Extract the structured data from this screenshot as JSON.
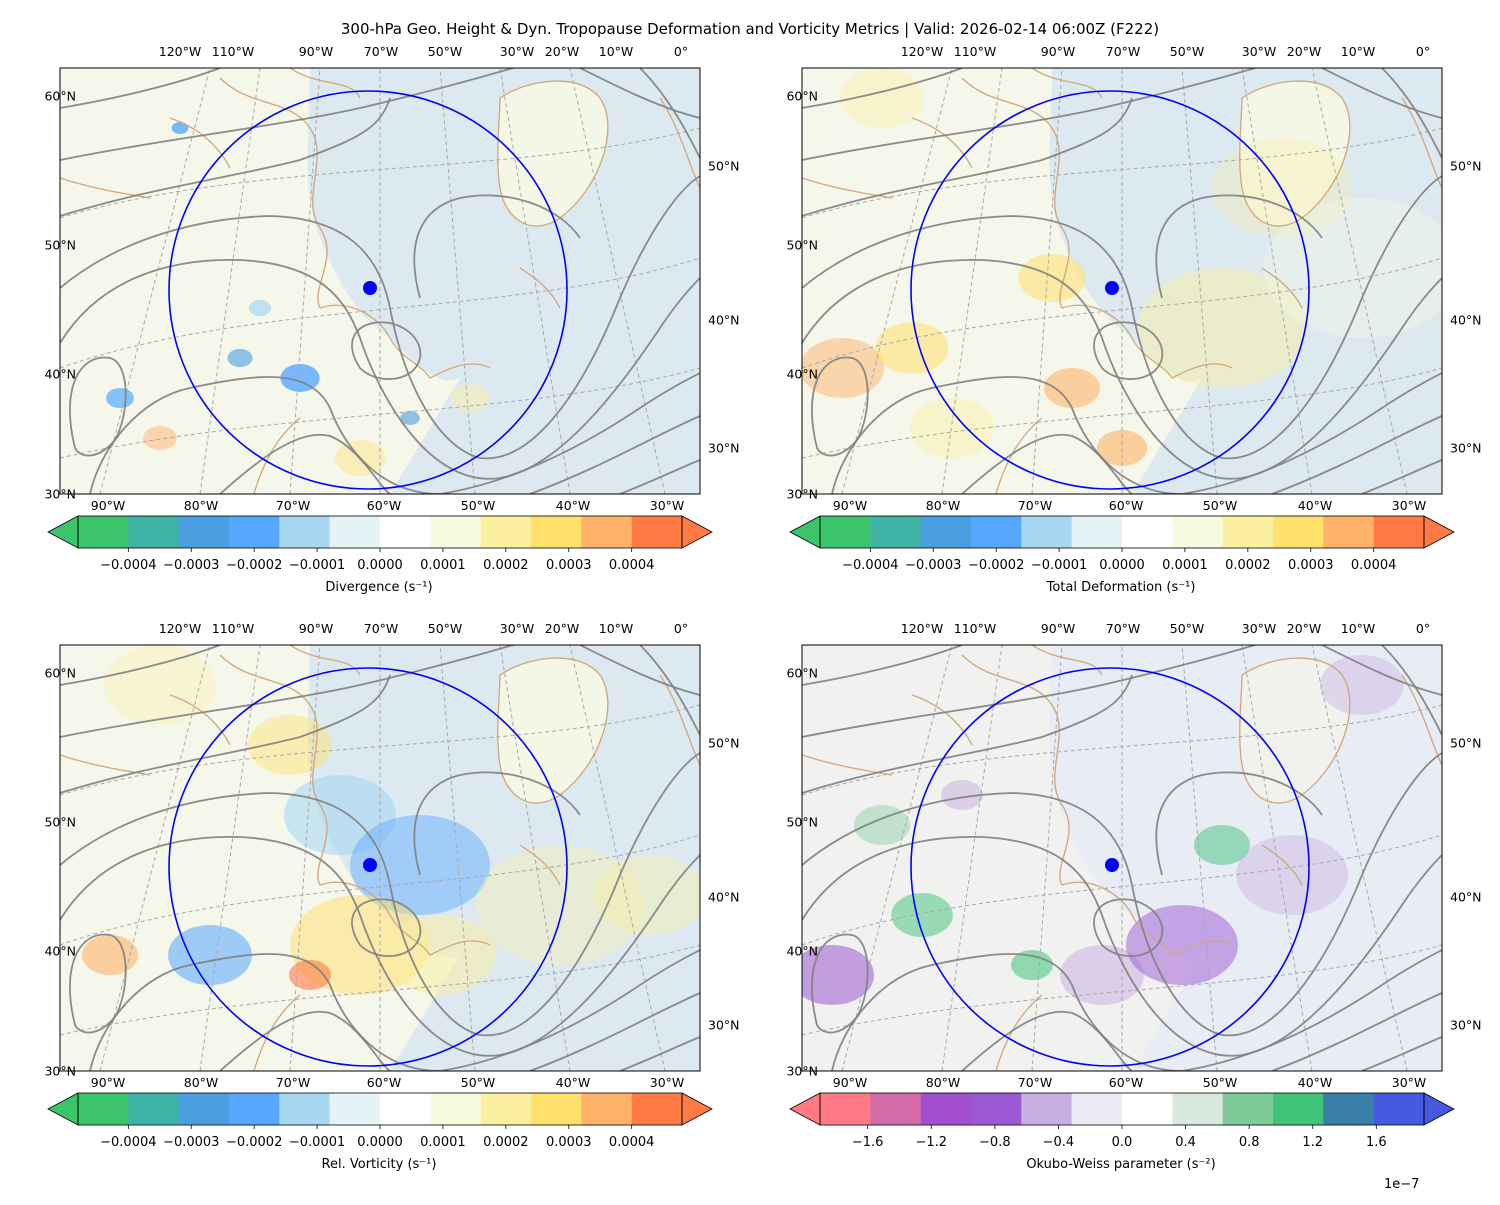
{
  "figure": {
    "title": "300-hPa Geo. Height & Dyn. Tropopause Deformation and Vorticity Metrics |  Valid: 2026-02-14 06:00Z (F222)"
  },
  "map": {
    "top_lon_labels": [
      "120°W",
      "110°W",
      "90°W",
      "70°W",
      "50°W",
      "30°W",
      "20°W",
      "10°W",
      "0°"
    ],
    "bottom_lon_labels": [
      "90°W",
      "80°W",
      "70°W",
      "60°W",
      "50°W",
      "40°W",
      "30°W"
    ],
    "left_lat_labels": [
      "60°N",
      "50°N",
      "40°N",
      "30°N"
    ],
    "right_lat_labels": [
      "50°N",
      "40°N",
      "30°N"
    ],
    "colors": {
      "contour": "#7f7f7f",
      "coast": "#d2a679",
      "ring": "#0000ff",
      "marker": "#0000ff",
      "gridline": "#a8a8a8"
    }
  },
  "panels": [
    {
      "id": "divergence",
      "colorbar_label": "Divergence (s⁻¹)",
      "ticks": [
        "−0.0004",
        "−0.0003",
        "−0.0002",
        "−0.0001",
        "0.0000",
        "0.0001",
        "0.0002",
        "0.0003",
        "0.0004"
      ],
      "tick_values": [
        -0.0004,
        -0.0003,
        -0.0002,
        -0.0001,
        0,
        0.0001,
        0.0002,
        0.0003,
        0.0004
      ],
      "range": [
        -0.00048,
        0.00048
      ],
      "colorscale": [
        "#3cc46a",
        "#3fb3a6",
        "#4a9fe0",
        "#56a8ff",
        "#a8d7f2",
        "#e4f4f6",
        "#ffffff",
        "#f6fbe0",
        "#fbf0a0",
        "#ffe06a",
        "#ffb26a",
        "#ff7a45"
      ],
      "offset": ""
    },
    {
      "id": "total-deformation",
      "colorbar_label": "Total Deformation (s⁻¹)",
      "ticks": [
        "−0.0004",
        "−0.0003",
        "−0.0002",
        "−0.0001",
        "0.0000",
        "0.0001",
        "0.0002",
        "0.0003",
        "0.0004"
      ],
      "tick_values": [
        -0.0004,
        -0.0003,
        -0.0002,
        -0.0001,
        0,
        0.0001,
        0.0002,
        0.0003,
        0.0004
      ],
      "range": [
        -0.00048,
        0.00048
      ],
      "colorscale": [
        "#3cc46a",
        "#3fb3a6",
        "#4a9fe0",
        "#56a8ff",
        "#a8d7f2",
        "#e4f4f6",
        "#ffffff",
        "#f6fbe0",
        "#fbf0a0",
        "#ffe06a",
        "#ffb26a",
        "#ff7a45"
      ],
      "offset": ""
    },
    {
      "id": "relative-vorticity",
      "colorbar_label": "Rel. Vorticity (s⁻¹)",
      "ticks": [
        "−0.0004",
        "−0.0003",
        "−0.0002",
        "−0.0001",
        "0.0000",
        "0.0001",
        "0.0002",
        "0.0003",
        "0.0004"
      ],
      "tick_values": [
        -0.0004,
        -0.0003,
        -0.0002,
        -0.0001,
        0,
        0.0001,
        0.0002,
        0.0003,
        0.0004
      ],
      "range": [
        -0.00048,
        0.00048
      ],
      "colorscale": [
        "#3cc46a",
        "#3fb3a6",
        "#4a9fe0",
        "#56a8ff",
        "#a8d7f2",
        "#e4f4f6",
        "#ffffff",
        "#f6fbe0",
        "#fbf0a0",
        "#ffe06a",
        "#ffb26a",
        "#ff7a45"
      ],
      "offset": ""
    },
    {
      "id": "okubo-weiss",
      "colorbar_label": "Okubo-Weiss parameter (s⁻²)",
      "ticks": [
        "−1.6",
        "−1.2",
        "−0.8",
        "−0.4",
        "0.0",
        "0.4",
        "0.8",
        "1.2",
        "1.6"
      ],
      "tick_values": [
        -1.6,
        -1.2,
        -0.8,
        -0.4,
        0,
        0.4,
        0.8,
        1.2,
        1.6
      ],
      "range": [
        -1.9,
        1.9
      ],
      "colorscale": [
        "#ff7a85",
        "#d46aa8",
        "#a24fd0",
        "#9b59d6",
        "#c7b0e2",
        "#eeeaf3",
        "#ffffff",
        "#d8e8dc",
        "#7ecb9a",
        "#3fc47a",
        "#3a7fa8",
        "#4659e0"
      ],
      "offset": "1e−7"
    }
  ]
}
